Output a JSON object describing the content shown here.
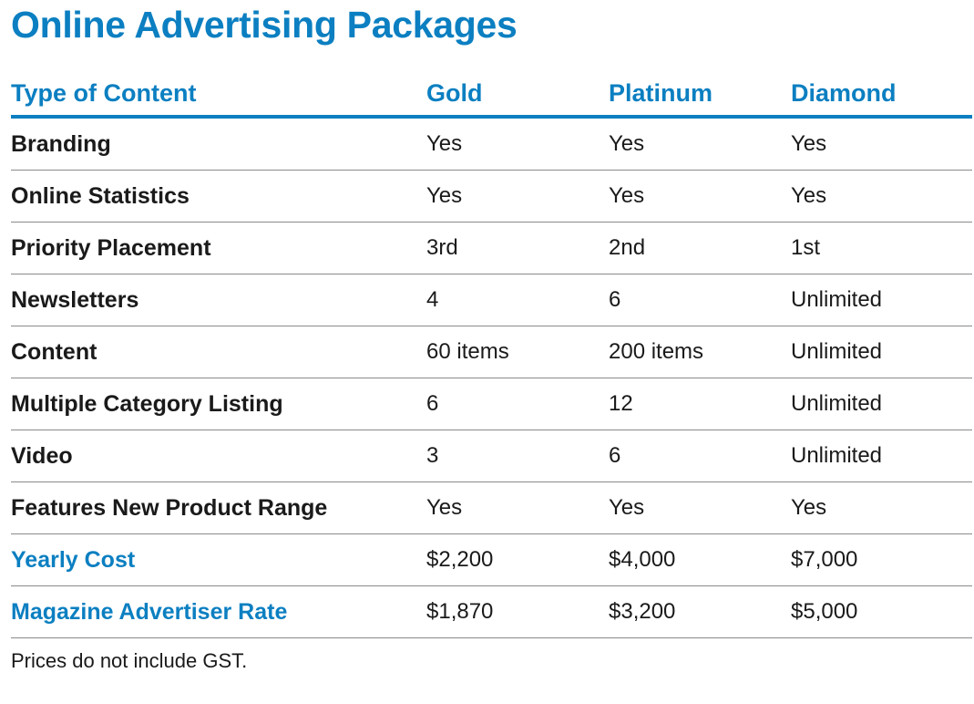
{
  "title": "Online Advertising Packages",
  "header": [
    "Type of Content",
    "Gold",
    "Platinum",
    "Diamond"
  ],
  "rows": [
    {
      "label": "Branding",
      "gold": "Yes",
      "platinum": "Yes",
      "diamond": "Yes"
    },
    {
      "label": "Online Statistics",
      "gold": "Yes",
      "platinum": "Yes",
      "diamond": "Yes"
    },
    {
      "label": "Priority Placement",
      "gold": "3rd",
      "platinum": "2nd",
      "diamond": "1st"
    },
    {
      "label": "Newsletters",
      "gold": "4",
      "platinum": "6",
      "diamond": "Unlimited"
    },
    {
      "label": "Content",
      "gold": "60 items",
      "platinum": "200 items",
      "diamond": "Unlimited"
    },
    {
      "label": "Multiple Category Listing",
      "gold": "6",
      "platinum": "12",
      "diamond": "Unlimited"
    },
    {
      "label": "Video",
      "gold": "3",
      "platinum": "6",
      "diamond": "Unlimited"
    },
    {
      "label": "Features New Product Range",
      "gold": "Yes",
      "platinum": "Yes",
      "diamond": "Yes"
    },
    {
      "label": "Yearly Cost",
      "gold": "$2,200",
      "platinum": "$4,000",
      "diamond": "$7,000",
      "highlight": true
    },
    {
      "label": "Magazine Advertiser Rate",
      "gold": "$1,870",
      "platinum": "$3,200",
      "diamond": "$5,000",
      "highlight": true
    }
  ],
  "footnote": "Prices do not include GST.",
  "colors": {
    "accent": "#0b7fc1",
    "text": "#1a1a1a"
  }
}
